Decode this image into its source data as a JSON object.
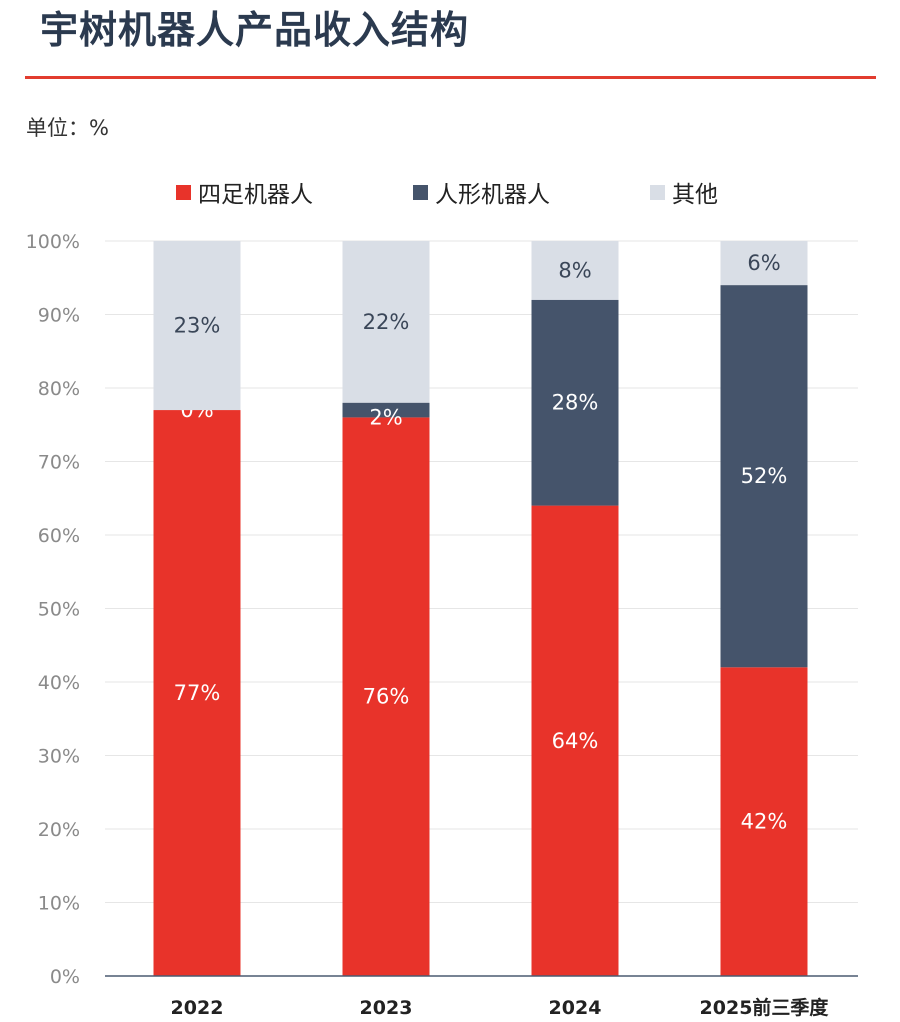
{
  "page": {
    "title": "宇树机器人产品收入结构",
    "unit_label": "单位：%"
  },
  "colors": {
    "accent": "#e23c2f",
    "grid": "#e6e6e6",
    "axis": "#4a5a70"
  },
  "chart_data": {
    "type": "bar",
    "stacked": true,
    "categories": [
      "2022",
      "2023",
      "2024",
      "2025前三季度"
    ],
    "series": [
      {
        "name": "四足机器人",
        "color": "#e8332a",
        "label_color": "#ffffff",
        "values": [
          77,
          76,
          64,
          42
        ],
        "labels": [
          "77%",
          "76%",
          "64%",
          "42%"
        ]
      },
      {
        "name": "人形机器人",
        "color": "#45546b",
        "label_color": "#ffffff",
        "values": [
          0,
          2,
          28,
          52
        ],
        "labels": [
          "0%",
          "2%",
          "28%",
          "52%"
        ]
      },
      {
        "name": "其他",
        "color": "#d9dee6",
        "label_color": "#3a4658",
        "values": [
          23,
          22,
          8,
          6
        ],
        "labels": [
          "23%",
          "22%",
          "8%",
          "6%"
        ]
      }
    ],
    "ylim": [
      0,
      100
    ],
    "yticks": [
      "0%",
      "10%",
      "20%",
      "30%",
      "40%",
      "50%",
      "60%",
      "70%",
      "80%",
      "90%",
      "100%"
    ],
    "grid": true,
    "legend_position": "top"
  }
}
